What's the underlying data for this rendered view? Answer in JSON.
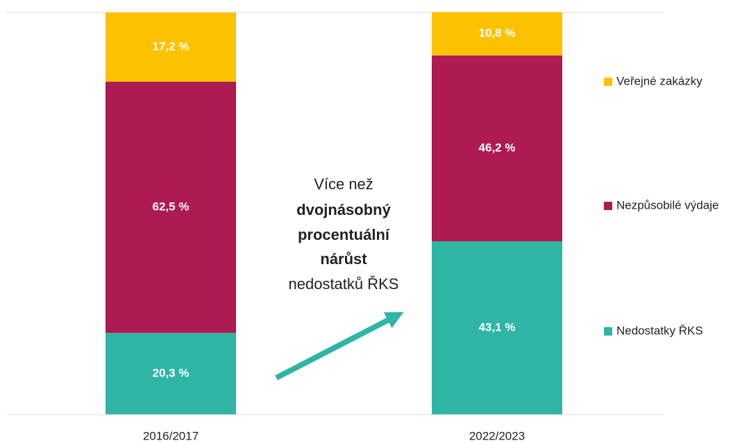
{
  "chart_data": {
    "type": "stacked_bar",
    "categories": [
      "2016/2017",
      "2022/2023"
    ],
    "series": [
      {
        "name": "Nedostatky ŘKS",
        "color": "#2fb5a4",
        "values": [
          20.3,
          43.1
        ],
        "value_labels": [
          "20,3 %",
          "43,1 %"
        ]
      },
      {
        "name": "Nezpůsobilé výdaje",
        "color": "#ae1a52",
        "values": [
          62.5,
          46.2
        ],
        "value_labels": [
          "62,5 %",
          "46,2 %"
        ]
      },
      {
        "name": "Veřejné zakázky",
        "color": "#fcc200",
        "values": [
          17.2,
          10.8
        ],
        "value_labels": [
          "17,2 %",
          "10,8 %"
        ]
      }
    ],
    "ylim": [
      0,
      100
    ],
    "legend": "right",
    "annotation": {
      "lines": [
        {
          "text": "Více než",
          "bold": false
        },
        {
          "text": "dvojnásobný",
          "bold": true
        },
        {
          "text": "procentuální",
          "bold": true
        },
        {
          "text": "nárůst",
          "bold": true
        },
        {
          "text": "nedostatků ŘKS",
          "bold": false
        }
      ]
    }
  }
}
